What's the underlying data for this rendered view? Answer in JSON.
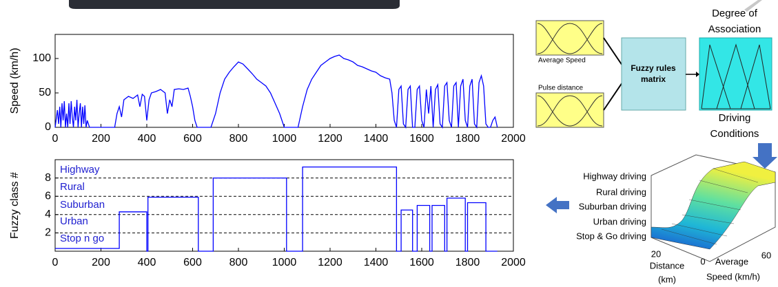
{
  "chart_data": [
    {
      "type": "line",
      "ylabel": "Speed (km/h)",
      "color": "#0000ff",
      "x": [
        0,
        10,
        15,
        20,
        25,
        30,
        35,
        40,
        45,
        50,
        55,
        60,
        65,
        70,
        75,
        80,
        85,
        90,
        95,
        100,
        105,
        110,
        115,
        120,
        125,
        130,
        135,
        140,
        150,
        260,
        270,
        280,
        290,
        300,
        320,
        340,
        360,
        370,
        380,
        390,
        400,
        410,
        420,
        440,
        460,
        480,
        490,
        500,
        510,
        520,
        540,
        560,
        580,
        590,
        600,
        610,
        620,
        680,
        700,
        720,
        740,
        760,
        780,
        800,
        820,
        840,
        860,
        880,
        900,
        920,
        940,
        960,
        980,
        1000,
        1060,
        1080,
        1100,
        1120,
        1140,
        1160,
        1180,
        1200,
        1220,
        1240,
        1260,
        1280,
        1300,
        1320,
        1340,
        1360,
        1380,
        1400,
        1420,
        1440,
        1460,
        1470,
        1480,
        1490,
        1500,
        1510,
        1520,
        1530,
        1540,
        1550,
        1560,
        1570,
        1580,
        1590,
        1600,
        1610,
        1620,
        1630,
        1640,
        1650,
        1660,
        1670,
        1680,
        1690,
        1700,
        1710,
        1720,
        1730,
        1740,
        1750,
        1760,
        1770,
        1780,
        1790,
        1800,
        1810,
        1820,
        1830,
        1840,
        1850,
        1860,
        1870,
        1880,
        1890,
        1900,
        1910,
        1920,
        1930
      ],
      "values": [
        0,
        25,
        5,
        30,
        0,
        35,
        10,
        38,
        0,
        20,
        0,
        35,
        5,
        38,
        15,
        0,
        30,
        10,
        40,
        0,
        20,
        35,
        0,
        30,
        5,
        32,
        0,
        10,
        0,
        0,
        20,
        30,
        15,
        40,
        45,
        42,
        47,
        30,
        48,
        45,
        10,
        40,
        50,
        52,
        55,
        50,
        20,
        40,
        30,
        55,
        56,
        55,
        57,
        45,
        30,
        10,
        0,
        0,
        20,
        50,
        70,
        80,
        88,
        95,
        92,
        85,
        78,
        70,
        65,
        60,
        50,
        35,
        20,
        0,
        0,
        30,
        55,
        70,
        80,
        90,
        95,
        100,
        103,
        105,
        100,
        98,
        95,
        90,
        88,
        85,
        82,
        80,
        75,
        72,
        70,
        50,
        10,
        0,
        55,
        60,
        5,
        0,
        55,
        60,
        0,
        0,
        55,
        60,
        10,
        0,
        55,
        20,
        60,
        0,
        55,
        62,
        5,
        0,
        60,
        65,
        10,
        0,
        60,
        65,
        0,
        60,
        70,
        10,
        0,
        60,
        70,
        5,
        0,
        65,
        75,
        60,
        5,
        0,
        0,
        10,
        15,
        0
      ],
      "xlim": [
        0,
        2000
      ],
      "xticks": [
        0,
        200,
        400,
        600,
        800,
        1000,
        1200,
        1400,
        1600,
        1800,
        2000
      ],
      "ylim": [
        0,
        135
      ],
      "yticks": [
        0,
        50,
        100
      ]
    },
    {
      "type": "step",
      "ylabel": "Fuzzy class #",
      "color": "#0000ff",
      "x": [
        0,
        280,
        280,
        400,
        400,
        405,
        405,
        625,
        625,
        690,
        690,
        1010,
        1010,
        1080,
        1080,
        1490,
        1490,
        1510,
        1510,
        1560,
        1560,
        1580,
        1580,
        1635,
        1635,
        1645,
        1645,
        1700,
        1700,
        1710,
        1710,
        1790,
        1790,
        1800,
        1800,
        1880,
        1880,
        1930
      ],
      "values": [
        0.3,
        0.3,
        4.3,
        4.3,
        0,
        0,
        5.9,
        5.9,
        0,
        0,
        8,
        8,
        0,
        0,
        9.2,
        9.2,
        0,
        0,
        4.5,
        4.5,
        0,
        0,
        5,
        5,
        0,
        0,
        5,
        5,
        0,
        0,
        5.8,
        5.8,
        0,
        0,
        5.3,
        5.3,
        0,
        0
      ],
      "annotations": [
        "Highway",
        "Rural",
        "Suburban",
        "Urban",
        "Stop n go"
      ],
      "xlim": [
        0,
        2000
      ],
      "xticks": [
        0,
        200,
        400,
        600,
        800,
        1000,
        1200,
        1400,
        1600,
        1800,
        2000
      ],
      "ylim": [
        0,
        10
      ],
      "yticks": [
        2,
        4,
        6,
        8
      ],
      "grid": true
    }
  ],
  "diagram": {
    "input1": "Average Speed",
    "input2": "Pulse distance",
    "rules_line1": "Fuzzy rules",
    "rules_line2": "matrix",
    "output_title1": "Degree of",
    "output_title2": "Association",
    "output_caption1": "Driving",
    "output_caption2": "Conditions",
    "surface_labels": [
      "Highway driving",
      "Rural driving",
      "Suburban driving",
      "Urban driving",
      "Stop & Go driving"
    ],
    "distance_tick": "20",
    "zero_tick": "0",
    "speed_tick": "60",
    "distance_label1": "Distance",
    "distance_label2": "(km)",
    "speed_label1": "Average",
    "speed_label2": "Speed (km/h)"
  }
}
